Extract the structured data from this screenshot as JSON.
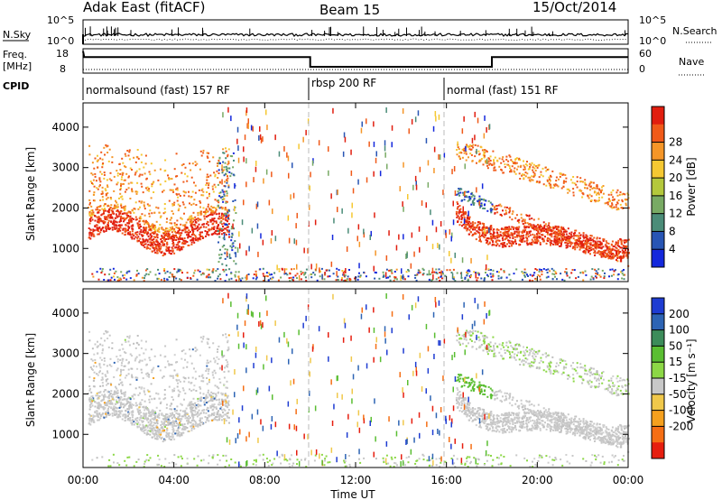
{
  "header": {
    "station": "Adak East (fitACF)",
    "beam": "Beam 15",
    "date": "15/Oct/2014"
  },
  "nsky_panel": {
    "left_label": "N.Sky",
    "right_label": "N.Search",
    "left_ticks": [
      "10^5",
      "10^0"
    ],
    "right_ticks": [
      "10^5",
      "10^0"
    ]
  },
  "freq_panel": {
    "left_label_line1": "Freq.",
    "left_label_line2": "[MHz]",
    "right_label": "Nave",
    "left_ticks": [
      "18",
      "8"
    ],
    "right_ticks": [
      "60",
      "0"
    ],
    "freq_series": [
      {
        "t": 0.0,
        "mhz": 17.0
      },
      {
        "t": 0.05,
        "mhz": 14.6
      },
      {
        "t": 10.0,
        "mhz": 14.6
      },
      {
        "t": 10.0,
        "mhz": 10.6
      },
      {
        "t": 18.0,
        "mhz": 10.6
      },
      {
        "t": 18.0,
        "mhz": 14.6
      },
      {
        "t": 24.0,
        "mhz": 14.6
      }
    ]
  },
  "cpid": {
    "label": "CPID",
    "segments": [
      {
        "name": "normalsound (fast) 157 RF",
        "start": 0,
        "end": 10
      },
      {
        "name": "rbsp 200 RF",
        "start": 10,
        "end": 16
      },
      {
        "name": "normal (fast) 151 RF",
        "start": 16,
        "end": 24
      }
    ]
  },
  "axes": {
    "x_label": "Time UT",
    "x_ticks": [
      "00:00",
      "04:00",
      "08:00",
      "12:00",
      "16:00",
      "20:00",
      "00:00"
    ],
    "y_label": "Slant Range [km]",
    "y_ticks": [
      "1000",
      "2000",
      "3000",
      "4000"
    ]
  },
  "power_colorbar": {
    "label": "Power [dB]",
    "ticks": [
      "4",
      "8",
      "12",
      "16",
      "20",
      "24",
      "28"
    ],
    "colors": [
      "#1428dc",
      "#2855b4",
      "#4b8c78",
      "#78aa64",
      "#b4c83c",
      "#f5c832",
      "#f59628",
      "#f05a19",
      "#e11e0f"
    ]
  },
  "velocity_colorbar": {
    "label": "Velocity [m s⁻¹]",
    "ticks": [
      "200",
      "100",
      "50",
      "15",
      "-15",
      "-50",
      "-100",
      "-200"
    ],
    "colors": [
      "#1e3cd2",
      "#2d64b4",
      "#3c8c5a",
      "#5abe32",
      "#8cd746",
      "#c8c8c8",
      "#f0c84b",
      "#f5a01e",
      "#f56e14",
      "#e61e0f"
    ]
  },
  "chart_data": [
    {
      "type": "heatmap",
      "title": "Power [dB]",
      "xlabel": "Time UT",
      "ylabel": "Slant Range [km]",
      "xlim": [
        0,
        24
      ],
      "ylim": [
        180,
        4600
      ],
      "description_values": [
        {
          "time_range": [
            0.2,
            6.4
          ],
          "range_km": [
            1000,
            3500
          ],
          "power_db": [
            8,
            30
          ]
        },
        {
          "time_range": [
            16.4,
            24.0
          ],
          "range_km": [
            1000,
            3500
          ],
          "power_db": [
            4,
            30
          ]
        }
      ]
    },
    {
      "type": "heatmap",
      "title": "Velocity [m s⁻¹]",
      "xlabel": "Time UT",
      "ylabel": "Slant Range [km]",
      "xlim": [
        0,
        24
      ],
      "ylim": [
        180,
        4600
      ],
      "description_values": [
        {
          "time_range": [
            0.2,
            6.4
          ],
          "range_km": [
            1000,
            3500
          ],
          "velocity_ms": [
            -100,
            100
          ]
        },
        {
          "time_range": [
            16.4,
            24.0
          ],
          "range_km": [
            1000,
            3500
          ],
          "velocity_ms": [
            -200,
            100
          ]
        }
      ]
    }
  ]
}
